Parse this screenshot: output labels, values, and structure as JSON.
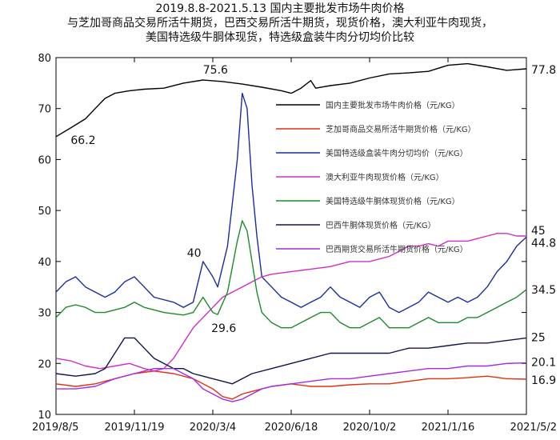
{
  "title_lines": [
    "2019.8.8-2021.5.13 国内主要批发市场牛肉价格",
    "与芝加哥商品交易所活牛期货，巴西交易所活牛期货，现货价格，澳大利亚牛肉现货，",
    "美国特选级牛胴体现货，特选级盒装牛肉分切均价比较"
  ],
  "chart_data": {
    "type": "line",
    "ylim": [
      10,
      80
    ],
    "yticks": [
      10,
      20,
      30,
      40,
      50,
      60,
      70,
      80
    ],
    "xticks": [
      "2019/8/5",
      "2019/11/19",
      "2020/3/4",
      "2020/6/18",
      "2020/10/2",
      "2021/1/16",
      "2021/5/2"
    ],
    "x_index_range": [
      0,
      96
    ],
    "series": [
      {
        "name": "国内主要批发市场牛肉价格（元/KG）",
        "color": "#000000",
        "points": [
          [
            0,
            64.5
          ],
          [
            3,
            66.2
          ],
          [
            6,
            68
          ],
          [
            8,
            70
          ],
          [
            10,
            72
          ],
          [
            12,
            73
          ],
          [
            15,
            73.5
          ],
          [
            18,
            73.8
          ],
          [
            22,
            74
          ],
          [
            26,
            75
          ],
          [
            30,
            75.6
          ],
          [
            34,
            75.3
          ],
          [
            38,
            74.8
          ],
          [
            42,
            74.2
          ],
          [
            46,
            73.5
          ],
          [
            48,
            73
          ],
          [
            50,
            74
          ],
          [
            52,
            75.5
          ],
          [
            53,
            74
          ],
          [
            56,
            74.5
          ],
          [
            60,
            75
          ],
          [
            64,
            76
          ],
          [
            68,
            76.8
          ],
          [
            72,
            77
          ],
          [
            76,
            77.3
          ],
          [
            80,
            78.5
          ],
          [
            84,
            78.8
          ],
          [
            88,
            78.2
          ],
          [
            92,
            77.5
          ],
          [
            96,
            77.8
          ]
        ]
      },
      {
        "name": "芝加哥商品交易所活牛期货价格（元/KG）",
        "color": "#e03010",
        "points": [
          [
            0,
            16
          ],
          [
            4,
            15.5
          ],
          [
            8,
            16
          ],
          [
            12,
            17
          ],
          [
            16,
            18
          ],
          [
            20,
            18.5
          ],
          [
            24,
            18
          ],
          [
            28,
            17
          ],
          [
            32,
            15
          ],
          [
            34,
            13.5
          ],
          [
            36,
            13
          ],
          [
            38,
            14
          ],
          [
            40,
            14.5
          ],
          [
            44,
            15.5
          ],
          [
            48,
            16
          ],
          [
            52,
            15.5
          ],
          [
            56,
            15.5
          ],
          [
            60,
            15.8
          ],
          [
            64,
            16
          ],
          [
            68,
            16
          ],
          [
            72,
            16.5
          ],
          [
            76,
            17
          ],
          [
            80,
            17
          ],
          [
            84,
            17.2
          ],
          [
            88,
            17.5
          ],
          [
            92,
            17
          ],
          [
            96,
            16.9
          ]
        ]
      },
      {
        "name": "美国特选级盒装牛肉分切均价（元/KG）",
        "color": "#1a2e9a",
        "points": [
          [
            0,
            34
          ],
          [
            2,
            36
          ],
          [
            4,
            37
          ],
          [
            6,
            35
          ],
          [
            8,
            34
          ],
          [
            10,
            33
          ],
          [
            12,
            34
          ],
          [
            14,
            36
          ],
          [
            16,
            37
          ],
          [
            18,
            35
          ],
          [
            20,
            33
          ],
          [
            24,
            32
          ],
          [
            26,
            31
          ],
          [
            28,
            32
          ],
          [
            30,
            40
          ],
          [
            32,
            37
          ],
          [
            33,
            35
          ],
          [
            35,
            43
          ],
          [
            37,
            60
          ],
          [
            38,
            73
          ],
          [
            39,
            70
          ],
          [
            40,
            55
          ],
          [
            41,
            45
          ],
          [
            42,
            37
          ],
          [
            44,
            35
          ],
          [
            46,
            33
          ],
          [
            48,
            32
          ],
          [
            50,
            31
          ],
          [
            52,
            32
          ],
          [
            54,
            33
          ],
          [
            56,
            35
          ],
          [
            57,
            34
          ],
          [
            58,
            33
          ],
          [
            60,
            32
          ],
          [
            62,
            31
          ],
          [
            64,
            33
          ],
          [
            66,
            34
          ],
          [
            68,
            31
          ],
          [
            70,
            30
          ],
          [
            72,
            31
          ],
          [
            74,
            32
          ],
          [
            76,
            34
          ],
          [
            78,
            33
          ],
          [
            80,
            32
          ],
          [
            82,
            33
          ],
          [
            84,
            32
          ],
          [
            86,
            33
          ],
          [
            88,
            35
          ],
          [
            90,
            38
          ],
          [
            92,
            40
          ],
          [
            94,
            43
          ],
          [
            96,
            44.8
          ]
        ]
      },
      {
        "name": "澳大利亚牛肉现货价格（元/KG）",
        "color": "#d02cc8",
        "points": [
          [
            0,
            21
          ],
          [
            3,
            20.5
          ],
          [
            6,
            19.5
          ],
          [
            9,
            19
          ],
          [
            12,
            19.5
          ],
          [
            15,
            20
          ],
          [
            18,
            19
          ],
          [
            20,
            18.5
          ],
          [
            22,
            19
          ],
          [
            24,
            21
          ],
          [
            26,
            24
          ],
          [
            28,
            27
          ],
          [
            30,
            29
          ],
          [
            32,
            31
          ],
          [
            34,
            33
          ],
          [
            36,
            34
          ],
          [
            38,
            35
          ],
          [
            40,
            36
          ],
          [
            42,
            37
          ],
          [
            44,
            37.5
          ],
          [
            48,
            38
          ],
          [
            52,
            38.5
          ],
          [
            56,
            39
          ],
          [
            60,
            40
          ],
          [
            64,
            40
          ],
          [
            68,
            41
          ],
          [
            70,
            42
          ],
          [
            72,
            43
          ],
          [
            74,
            43
          ],
          [
            76,
            43.5
          ],
          [
            78,
            43
          ],
          [
            80,
            44
          ],
          [
            82,
            44
          ],
          [
            84,
            44
          ],
          [
            86,
            44.5
          ],
          [
            88,
            45
          ],
          [
            90,
            45.5
          ],
          [
            92,
            45.5
          ],
          [
            94,
            45
          ],
          [
            96,
            45
          ]
        ]
      },
      {
        "name": "美国特选级牛胴体现货价格（元/KG）",
        "color": "#1e8a2a",
        "points": [
          [
            0,
            29
          ],
          [
            2,
            31
          ],
          [
            4,
            31.5
          ],
          [
            6,
            31
          ],
          [
            8,
            30
          ],
          [
            10,
            30
          ],
          [
            14,
            31
          ],
          [
            16,
            32
          ],
          [
            18,
            31
          ],
          [
            22,
            30
          ],
          [
            26,
            29.5
          ],
          [
            28,
            30
          ],
          [
            30,
            33
          ],
          [
            32,
            30
          ],
          [
            33,
            29.6
          ],
          [
            35,
            34
          ],
          [
            37,
            44
          ],
          [
            38,
            48
          ],
          [
            39,
            46
          ],
          [
            40,
            40
          ],
          [
            41,
            34
          ],
          [
            42,
            30
          ],
          [
            44,
            28
          ],
          [
            46,
            27
          ],
          [
            48,
            27
          ],
          [
            50,
            28
          ],
          [
            52,
            29
          ],
          [
            54,
            30
          ],
          [
            56,
            30
          ],
          [
            58,
            28
          ],
          [
            60,
            27
          ],
          [
            62,
            27
          ],
          [
            64,
            28
          ],
          [
            66,
            29
          ],
          [
            68,
            27
          ],
          [
            70,
            27
          ],
          [
            72,
            27
          ],
          [
            74,
            28
          ],
          [
            76,
            29
          ],
          [
            78,
            28
          ],
          [
            80,
            28
          ],
          [
            82,
            28
          ],
          [
            84,
            29
          ],
          [
            86,
            29
          ],
          [
            88,
            30
          ],
          [
            90,
            31
          ],
          [
            92,
            32
          ],
          [
            94,
            33
          ],
          [
            96,
            34.5
          ]
        ]
      },
      {
        "name": "巴西牛胴体现货价格（元/KG）",
        "color": "#10154a",
        "points": [
          [
            0,
            18
          ],
          [
            4,
            17.5
          ],
          [
            8,
            18
          ],
          [
            10,
            19
          ],
          [
            12,
            22
          ],
          [
            14,
            25
          ],
          [
            16,
            25
          ],
          [
            18,
            23
          ],
          [
            20,
            21
          ],
          [
            22,
            20
          ],
          [
            24,
            19
          ],
          [
            26,
            19
          ],
          [
            28,
            18
          ],
          [
            30,
            17.5
          ],
          [
            32,
            17
          ],
          [
            34,
            16.5
          ],
          [
            36,
            16
          ],
          [
            38,
            17
          ],
          [
            40,
            18
          ],
          [
            44,
            19
          ],
          [
            48,
            20
          ],
          [
            52,
            21
          ],
          [
            56,
            22
          ],
          [
            60,
            22
          ],
          [
            64,
            22
          ],
          [
            68,
            22
          ],
          [
            72,
            23
          ],
          [
            76,
            23
          ],
          [
            80,
            23.5
          ],
          [
            84,
            24
          ],
          [
            88,
            24
          ],
          [
            92,
            24.5
          ],
          [
            96,
            25
          ]
        ]
      },
      {
        "name": "巴西期货交易所活牛期货价格（元/KG）",
        "color": "#a62be0",
        "points": [
          [
            0,
            15
          ],
          [
            4,
            15
          ],
          [
            8,
            15.5
          ],
          [
            12,
            17
          ],
          [
            16,
            18
          ],
          [
            20,
            19
          ],
          [
            24,
            19
          ],
          [
            28,
            17
          ],
          [
            30,
            15
          ],
          [
            32,
            14
          ],
          [
            34,
            13
          ],
          [
            36,
            12.5
          ],
          [
            38,
            13
          ],
          [
            40,
            14
          ],
          [
            42,
            15
          ],
          [
            44,
            15.5
          ],
          [
            48,
            16
          ],
          [
            52,
            16.5
          ],
          [
            56,
            17
          ],
          [
            60,
            17
          ],
          [
            64,
            17.5
          ],
          [
            68,
            18
          ],
          [
            72,
            18.5
          ],
          [
            76,
            19
          ],
          [
            80,
            19
          ],
          [
            84,
            19.5
          ],
          [
            88,
            19.5
          ],
          [
            92,
            20
          ],
          [
            96,
            20.1
          ]
        ]
      }
    ],
    "annotations": [
      {
        "text": "66.2",
        "x": 3,
        "y": 66.2
      },
      {
        "text": "75.6",
        "x": 30,
        "y": 75.6
      },
      {
        "text": "40",
        "x": 30,
        "y": 40
      },
      {
        "text": "29.6",
        "x": 33,
        "y": 29.6
      },
      {
        "text": "77.8",
        "x": 96,
        "y": 77.8
      },
      {
        "text": "45",
        "x": 96,
        "y": 45
      },
      {
        "text": "44.8",
        "x": 96,
        "y": 44.8
      },
      {
        "text": "34.5",
        "x": 96,
        "y": 34.5
      },
      {
        "text": "25",
        "x": 96,
        "y": 25
      },
      {
        "text": "20.1",
        "x": 96,
        "y": 20.1
      },
      {
        "text": "16.9",
        "x": 96,
        "y": 16.9
      }
    ]
  }
}
